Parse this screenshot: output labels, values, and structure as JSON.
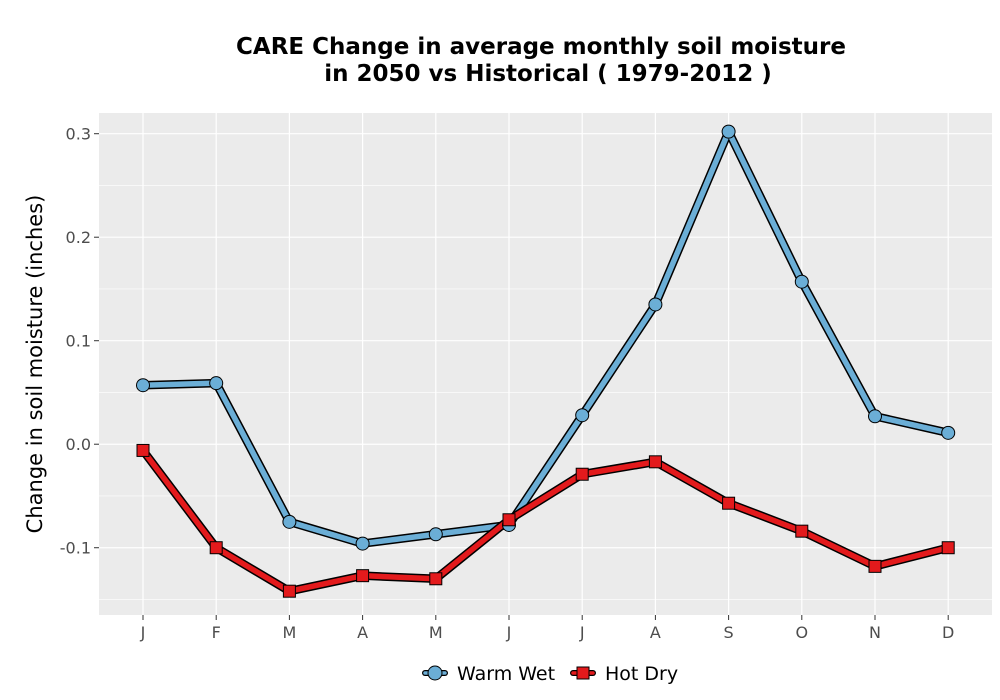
{
  "chart_data": {
    "type": "line",
    "title_line1": "CARE  Change in average monthly soil moisture",
    "title_line2": "in 2050 vs Historical ( 1979-2012 )",
    "ylabel": "Change in soil moisture (inches)",
    "xlabel": "",
    "categories": [
      "J",
      "F",
      "M",
      "A",
      "M",
      "J",
      "J",
      "A",
      "S",
      "O",
      "N",
      "D"
    ],
    "ylim": [
      -0.165,
      0.32
    ],
    "yticks": [
      0.3,
      0.2,
      0.1,
      0.0,
      -0.1
    ],
    "ytick_labels": [
      "0.3",
      "0.2",
      "0.1",
      "0.0",
      "-0.1"
    ],
    "grid": true,
    "legend_position": "bottom",
    "series": [
      {
        "name": "Warm Wet",
        "color": "#6baed6",
        "marker": "circle",
        "values": [
          0.057,
          0.059,
          -0.075,
          -0.096,
          -0.087,
          -0.078,
          0.028,
          0.135,
          0.302,
          0.157,
          0.027,
          0.011
        ]
      },
      {
        "name": "Hot Dry",
        "color": "#e31a1c",
        "marker": "square",
        "values": [
          -0.006,
          -0.1,
          -0.142,
          -0.127,
          -0.13,
          -0.073,
          -0.029,
          -0.017,
          -0.057,
          -0.084,
          -0.118,
          -0.1
        ]
      }
    ]
  }
}
